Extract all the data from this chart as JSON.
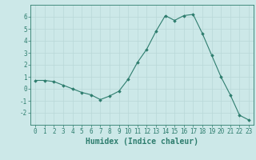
{
  "x": [
    0,
    1,
    2,
    3,
    4,
    5,
    6,
    7,
    8,
    9,
    10,
    11,
    12,
    13,
    14,
    15,
    16,
    17,
    18,
    19,
    20,
    21,
    22,
    23
  ],
  "y": [
    0.7,
    0.7,
    0.6,
    0.3,
    0.0,
    -0.3,
    -0.5,
    -0.9,
    -0.6,
    -0.2,
    0.8,
    2.2,
    3.3,
    4.8,
    6.1,
    5.7,
    6.1,
    6.2,
    4.6,
    2.8,
    1.0,
    -0.5,
    -2.2,
    -2.6
  ],
  "line_color": "#2e7d6e",
  "marker": "D",
  "marker_size": 1.8,
  "bg_color": "#cce8e8",
  "grid_color": "#b8d8d8",
  "xlabel": "Humidex (Indice chaleur)",
  "ylim": [
    -3,
    7
  ],
  "xlim": [
    -0.5,
    23.5
  ],
  "yticks": [
    -2,
    -1,
    0,
    1,
    2,
    3,
    4,
    5,
    6
  ],
  "xticks": [
    0,
    1,
    2,
    3,
    4,
    5,
    6,
    7,
    8,
    9,
    10,
    11,
    12,
    13,
    14,
    15,
    16,
    17,
    18,
    19,
    20,
    21,
    22,
    23
  ],
  "tick_label_fontsize": 5.5,
  "xlabel_fontsize": 7,
  "tick_color": "#2e7d6e",
  "spine_color": "#2e7d6e",
  "line_width": 0.8
}
